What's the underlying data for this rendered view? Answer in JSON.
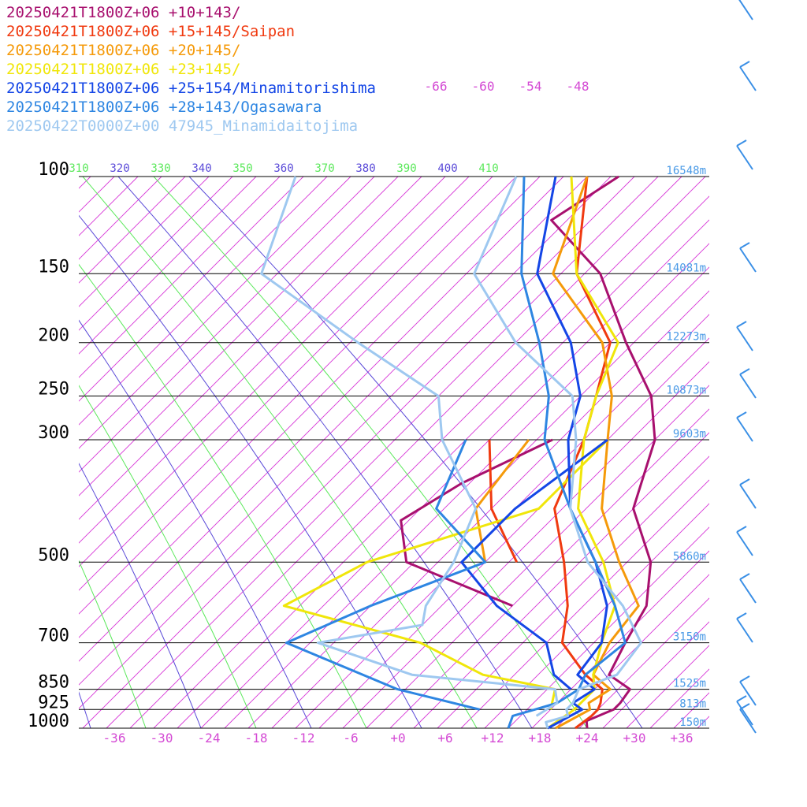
{
  "chart_data": {
    "type": "line",
    "title": "",
    "xlabel": "",
    "ylabel": "",
    "x_scale": "skew-T temperature (deg C)",
    "y_scale": "log pressure (hPa)",
    "xlim": [
      -40,
      40
    ],
    "ylim": [
      1000,
      100
    ],
    "x_ticks": [
      "-36",
      "-30",
      "-24",
      "-18",
      "-12",
      "-6",
      "+0",
      "+6",
      "+12",
      "+18",
      "+24",
      "+30",
      "+36"
    ],
    "upper_ticks": [
      "-66",
      "-60",
      "-54",
      "-48"
    ],
    "pressure_levels": [
      {
        "p": 100,
        "label": "100",
        "height": "16548m"
      },
      {
        "p": 150,
        "label": "150",
        "height": "14081m"
      },
      {
        "p": 200,
        "label": "200",
        "height": "12273m"
      },
      {
        "p": 250,
        "label": "250",
        "height": "10873m"
      },
      {
        "p": 300,
        "label": "300",
        "height": "9603m"
      },
      {
        "p": 500,
        "label": "500",
        "height": "5860m"
      },
      {
        "p": 700,
        "label": "700",
        "height": "3150m"
      },
      {
        "p": 850,
        "label": "850",
        "height": "1525m"
      },
      {
        "p": 925,
        "label": "925",
        "height": "813m"
      },
      {
        "p": 1000,
        "label": "1000",
        "height": "150m"
      }
    ],
    "theta_e_labels": [
      {
        "v": "310",
        "c": "#5be85b"
      },
      {
        "v": "320",
        "c": "#5a4ad8"
      },
      {
        "v": "330",
        "c": "#5be85b"
      },
      {
        "v": "340",
        "c": "#5a4ad8"
      },
      {
        "v": "350",
        "c": "#5be85b"
      },
      {
        "v": "360",
        "c": "#5a4ad8"
      },
      {
        "v": "370",
        "c": "#5be85b"
      },
      {
        "v": "380",
        "c": "#5a4ad8"
      },
      {
        "v": "390",
        "c": "#5be85b"
      },
      {
        "v": "400",
        "c": "#5a4ad8"
      },
      {
        "v": "410",
        "c": "#5be85b"
      }
    ],
    "colors": {
      "isotherm": "#d633d6",
      "theta_e_green": "#5be85b",
      "theta_e_blue": "#5a4ad8",
      "pressure": "#000000",
      "barb": "#3a8fe6"
    },
    "series": [
      {
        "name": "20250421T1800Z+06 +10+143/",
        "color": "#a8106e",
        "points": [
          [
            1000,
            24
          ],
          [
            970,
            23
          ],
          [
            925,
            25
          ],
          [
            900,
            25
          ],
          [
            850,
            24.5
          ],
          [
            800,
            20
          ],
          [
            700,
            18
          ],
          [
            600,
            16
          ],
          [
            500,
            11
          ],
          [
            400,
            2
          ],
          [
            300,
            -4
          ],
          [
            250,
            -10
          ],
          [
            200,
            -20
          ],
          [
            150,
            -32
          ],
          [
            120,
            -45
          ],
          [
            100,
            -42
          ]
        ],
        "dewpoint": [
          [
            600,
            -1
          ],
          [
            500,
            -20
          ],
          [
            420,
            -26
          ],
          [
            360,
            -23
          ],
          [
            300,
            -17
          ]
        ]
      },
      {
        "name": "20250421T1800Z+06 +15+145/Saipan",
        "color": "#f03a10",
        "points": [
          [
            1000,
            22.5
          ],
          [
            950,
            23
          ],
          [
            925,
            23
          ],
          [
            900,
            22.5
          ],
          [
            850,
            21
          ],
          [
            800,
            17
          ],
          [
            700,
            10
          ],
          [
            600,
            6
          ],
          [
            500,
            0
          ],
          [
            400,
            -8
          ],
          [
            300,
            -13
          ],
          [
            250,
            -17
          ],
          [
            200,
            -22
          ],
          [
            150,
            -35
          ],
          [
            100,
            -46
          ]
        ],
        "dewpoint": [
          [
            500,
            -6
          ],
          [
            400,
            -16
          ],
          [
            300,
            -25
          ]
        ]
      },
      {
        "name": "20250421T1800Z+06 +20+145/",
        "color": "#f59a0a",
        "points": [
          [
            1000,
            20
          ],
          [
            925,
            22
          ],
          [
            900,
            21
          ],
          [
            850,
            22
          ],
          [
            800,
            18
          ],
          [
            700,
            16
          ],
          [
            600,
            15
          ],
          [
            500,
            7
          ],
          [
            400,
            -2
          ],
          [
            300,
            -10
          ],
          [
            250,
            -15
          ],
          [
            200,
            -23
          ],
          [
            150,
            -38
          ],
          [
            100,
            -46
          ]
        ],
        "dewpoint": [
          [
            500,
            -10
          ],
          [
            400,
            -18
          ],
          [
            300,
            -20
          ]
        ]
      },
      {
        "name": "20250421T1800Z+06 +23+145/",
        "color": "#f0e60a",
        "points": [
          [
            1000,
            19
          ],
          [
            925,
            20
          ],
          [
            900,
            20
          ],
          [
            850,
            20
          ],
          [
            800,
            18
          ],
          [
            700,
            15
          ],
          [
            600,
            12
          ],
          [
            500,
            5
          ],
          [
            400,
            -5
          ],
          [
            300,
            -13
          ],
          [
            250,
            -17
          ],
          [
            200,
            -21
          ],
          [
            150,
            -35
          ],
          [
            100,
            -48
          ]
        ],
        "dewpoint": [
          [
            925,
            17
          ],
          [
            850,
            15
          ],
          [
            800,
            4
          ],
          [
            700,
            -8
          ],
          [
            600,
            -30
          ],
          [
            500,
            -25
          ],
          [
            400,
            -10
          ],
          [
            300,
            -10
          ]
        ]
      },
      {
        "name": "20250421T1800Z+06 +25+154/Minamitorishima",
        "color": "#1446e6",
        "points": [
          [
            1000,
            19
          ],
          [
            925,
            21
          ],
          [
            900,
            19
          ],
          [
            850,
            20
          ],
          [
            800,
            16
          ],
          [
            700,
            15
          ],
          [
            600,
            11
          ],
          [
            500,
            4
          ],
          [
            400,
            -6
          ],
          [
            300,
            -15
          ],
          [
            250,
            -19
          ],
          [
            200,
            -27
          ],
          [
            150,
            -40
          ],
          [
            100,
            -50
          ]
        ],
        "dewpoint": [
          [
            850,
            17
          ],
          [
            800,
            13
          ],
          [
            700,
            8
          ],
          [
            600,
            -3
          ],
          [
            500,
            -13
          ],
          [
            400,
            -13
          ],
          [
            300,
            -10
          ]
        ]
      },
      {
        "name": "20250421T1800Z+06 +28+143/Ogasawara",
        "color": "#2e86e2",
        "points": [
          [
            1000,
            14
          ],
          [
            950,
            13
          ],
          [
            925,
            15
          ],
          [
            900,
            17
          ],
          [
            850,
            18
          ],
          [
            800,
            17
          ],
          [
            700,
            18
          ],
          [
            600,
            12
          ],
          [
            500,
            4
          ],
          [
            400,
            -6
          ],
          [
            300,
            -18
          ],
          [
            250,
            -23
          ],
          [
            200,
            -31
          ],
          [
            150,
            -42
          ],
          [
            100,
            -54
          ]
        ],
        "dewpoint": [
          [
            925,
            8
          ],
          [
            850,
            -5
          ],
          [
            700,
            -25
          ],
          [
            600,
            -19
          ],
          [
            500,
            -10
          ],
          [
            400,
            -23
          ],
          [
            300,
            -28
          ]
        ]
      },
      {
        "name": "20250422T0000Z+00 47945_Minamidaitojima",
        "color": "#9ec8f0",
        "points": [
          [
            1000,
            19
          ],
          [
            975,
            18
          ],
          [
            950,
            20
          ],
          [
            925,
            19
          ],
          [
            900,
            19
          ],
          [
            850,
            18
          ],
          [
            800,
            21
          ],
          [
            700,
            20
          ],
          [
            600,
            13
          ],
          [
            500,
            3
          ],
          [
            400,
            -6
          ],
          [
            300,
            -14
          ],
          [
            250,
            -20
          ],
          [
            200,
            -34
          ],
          [
            150,
            -48
          ],
          [
            100,
            -55
          ]
        ],
        "dewpoint": [
          [
            950,
            16
          ],
          [
            900,
            17
          ],
          [
            850,
            15
          ],
          [
            800,
            -5
          ],
          [
            700,
            -21
          ],
          [
            650,
            -10
          ],
          [
            600,
            -12
          ],
          [
            500,
            -14
          ],
          [
            400,
            -18
          ],
          [
            300,
            -31
          ],
          [
            250,
            -37
          ],
          [
            200,
            -54
          ],
          [
            150,
            -75
          ],
          [
            100,
            -83
          ]
        ]
      }
    ]
  }
}
